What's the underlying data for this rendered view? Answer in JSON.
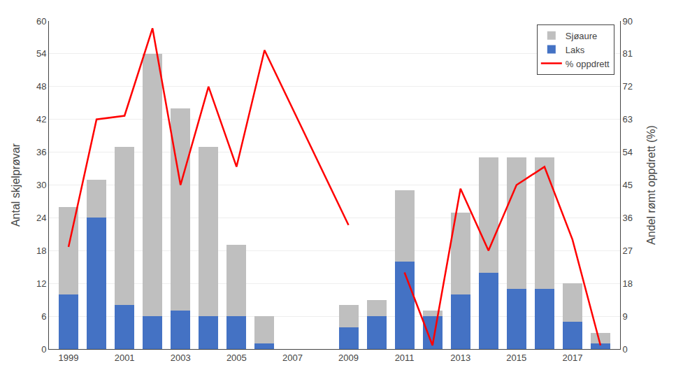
{
  "chart_data": {
    "type": "bar",
    "stacked": true,
    "x": [
      1999,
      2000,
      2001,
      2002,
      2003,
      2004,
      2005,
      2006,
      2009,
      2010,
      2011,
      2012,
      2013,
      2014,
      2015,
      2016,
      2017,
      2018
    ],
    "series": [
      {
        "name": "Laks",
        "color": "#4472c4",
        "values": [
          10,
          24,
          8,
          6,
          7,
          6,
          6,
          1,
          4,
          6,
          16,
          6,
          10,
          14,
          11,
          11,
          5,
          1
        ]
      },
      {
        "name": "Sjøaure",
        "color": "#bfbfbf",
        "values": [
          16,
          7,
          29,
          48,
          37,
          31,
          13,
          5,
          4,
          3,
          13,
          1,
          15,
          21,
          24,
          24,
          7,
          2
        ]
      },
      {
        "name": "% oppdrett",
        "type": "line",
        "axis": "y2",
        "color": "#ff0000",
        "values": [
          28,
          63,
          64,
          88,
          45,
          72,
          50,
          82,
          34,
          null,
          21,
          1,
          44,
          27,
          45,
          50,
          30,
          1
        ]
      }
    ],
    "ylabel": "Antal skjelprøvar",
    "y2label": "Andel rømt oppdrett (%)",
    "xlim": [
      1998.3,
      2018.7
    ],
    "xticks": [
      1999,
      2001,
      2003,
      2005,
      2007,
      2009,
      2011,
      2013,
      2015,
      2017
    ],
    "ylim": [
      0,
      60
    ],
    "yticks": [
      0,
      6,
      12,
      18,
      24,
      30,
      36,
      42,
      48,
      54,
      60
    ],
    "y2lim": [
      0,
      90
    ],
    "y2ticks": [
      0,
      9,
      18,
      27,
      36,
      45,
      54,
      63,
      72,
      81,
      90
    ],
    "grid": true,
    "legend": "upper right"
  }
}
